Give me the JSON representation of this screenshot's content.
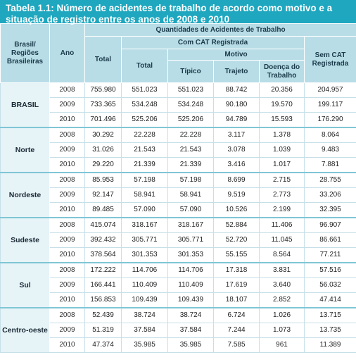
{
  "title": "Tabela 1.1: Número de acidentes de trabalho de acordo como motivo e a situação de registro entre os anos de 2008 e 2010",
  "headers": {
    "regiao": "Brasil/ Regiões Brasileiras",
    "ano": "Ano",
    "quantidades": "Quantidades de Acidentes de Trabalho",
    "total": "Total",
    "com_cat": "Com CAT Registrada",
    "cat_total": "Total",
    "motivo": "Motivo",
    "tipico": "Típico",
    "trajeto": "Trajeto",
    "doenca": "Doença do Trabalho",
    "sem_cat": "Sem CAT Registrada"
  },
  "regions": [
    {
      "name": "BRASIL",
      "rows": [
        {
          "ano": "2008",
          "total": "755.980",
          "cat_total": "551.023",
          "tipico": "551.023",
          "trajeto": "88.742",
          "doenca": "20.356",
          "sem_cat": "204.957"
        },
        {
          "ano": "2009",
          "total": "733.365",
          "cat_total": "534.248",
          "tipico": "534.248",
          "trajeto": "90.180",
          "doenca": "19.570",
          "sem_cat": "199.117"
        },
        {
          "ano": "2010",
          "total": "701.496",
          "cat_total": "525.206",
          "tipico": "525.206",
          "trajeto": "94.789",
          "doenca": "15.593",
          "sem_cat": "176.290"
        }
      ]
    },
    {
      "name": "Norte",
      "rows": [
        {
          "ano": "2008",
          "total": "30.292",
          "cat_total": "22.228",
          "tipico": "22.228",
          "trajeto": "3.117",
          "doenca": "1.378",
          "sem_cat": "8.064"
        },
        {
          "ano": "2009",
          "total": "31.026",
          "cat_total": "21.543",
          "tipico": "21.543",
          "trajeto": "3.078",
          "doenca": "1.039",
          "sem_cat": "9.483"
        },
        {
          "ano": "2010",
          "total": "29.220",
          "cat_total": "21.339",
          "tipico": "21.339",
          "trajeto": "3.416",
          "doenca": "1.017",
          "sem_cat": "7.881"
        }
      ]
    },
    {
      "name": "Nordeste",
      "rows": [
        {
          "ano": "2008",
          "total": "85.953",
          "cat_total": "57.198",
          "tipico": "57.198",
          "trajeto": "8.699",
          "doenca": "2.715",
          "sem_cat": "28.755"
        },
        {
          "ano": "2009",
          "total": "92.147",
          "cat_total": "58.941",
          "tipico": "58.941",
          "trajeto": "9.519",
          "doenca": "2.773",
          "sem_cat": "33.206"
        },
        {
          "ano": "2010",
          "total": "89.485",
          "cat_total": "57.090",
          "tipico": "57.090",
          "trajeto": "10.526",
          "doenca": "2.199",
          "sem_cat": "32.395"
        }
      ]
    },
    {
      "name": "Sudeste",
      "rows": [
        {
          "ano": "2008",
          "total": "415.074",
          "cat_total": "318.167",
          "tipico": "318.167",
          "trajeto": "52.884",
          "doenca": "11.406",
          "sem_cat": "96.907"
        },
        {
          "ano": "2009",
          "total": "392.432",
          "cat_total": "305.771",
          "tipico": "305.771",
          "trajeto": "52.720",
          "doenca": "11.045",
          "sem_cat": "86.661"
        },
        {
          "ano": "2010",
          "total": "378.564",
          "cat_total": "301.353",
          "tipico": "301.353",
          "trajeto": "55.155",
          "doenca": "8.564",
          "sem_cat": "77.211"
        }
      ]
    },
    {
      "name": "Sul",
      "rows": [
        {
          "ano": "2008",
          "total": "172.222",
          "cat_total": "114.706",
          "tipico": "114.706",
          "trajeto": "17.318",
          "doenca": "3.831",
          "sem_cat": "57.516"
        },
        {
          "ano": "2009",
          "total": "166.441",
          "cat_total": "110.409",
          "tipico": "110.409",
          "trajeto": "17.619",
          "doenca": "3.640",
          "sem_cat": "56.032"
        },
        {
          "ano": "2010",
          "total": "156.853",
          "cat_total": "109.439",
          "tipico": "109.439",
          "trajeto": "18.107",
          "doenca": "2.852",
          "sem_cat": "47.414"
        }
      ]
    },
    {
      "name": "Centro-oeste",
      "rows": [
        {
          "ano": "2008",
          "total": "52.439",
          "cat_total": "38.724",
          "tipico": "38.724",
          "trajeto": "6.724",
          "doenca": "1.026",
          "sem_cat": "13.715"
        },
        {
          "ano": "2009",
          "total": "51.319",
          "cat_total": "37.584",
          "tipico": "37.584",
          "trajeto": "7.244",
          "doenca": "1.073",
          "sem_cat": "13.735"
        },
        {
          "ano": "2010",
          "total": "47.374",
          "cat_total": "35.985",
          "tipico": "35.985",
          "trajeto": "7.585",
          "doenca": "961",
          "sem_cat": "11.389"
        }
      ]
    }
  ]
}
